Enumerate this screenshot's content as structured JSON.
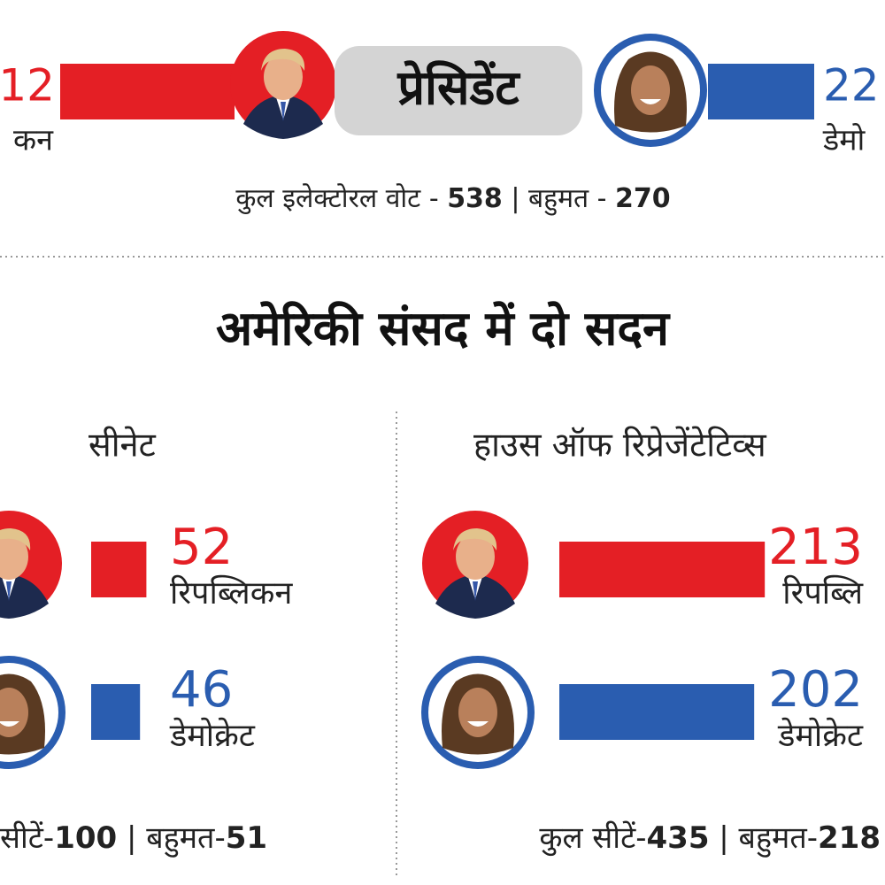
{
  "president": {
    "rep_value": "12",
    "rep_party": "कन",
    "title": "प्रेसिडेंट",
    "dem_value": "22",
    "dem_party": "डेमो",
    "total_label": "कुल इलेक्टोरल वोट - ",
    "total": 538,
    "majority_label": " बहुमत - ",
    "majority": 270
  },
  "heading": "अमेरिकी संसद में दो सदन",
  "senate": {
    "title": "सीनेट",
    "rep_value": 52,
    "rep_party": "रिपब्लिकन",
    "dem_value": 46,
    "dem_party": "डेमोक्रेट",
    "total_label": "सीटें-",
    "total": 100,
    "majority_label": " बहुमत-",
    "majority": 51
  },
  "house": {
    "title": "हाउस ऑफ रिप्रेजेंटेटिव्स",
    "rep_value": 213,
    "rep_party": "रिपब्लि",
    "dem_value": 202,
    "dem_party": "डेमोक्रेट",
    "total_label": "कुल सीटें-",
    "total": 435,
    "majority_label": " बहुमत-",
    "majority": 218
  }
}
